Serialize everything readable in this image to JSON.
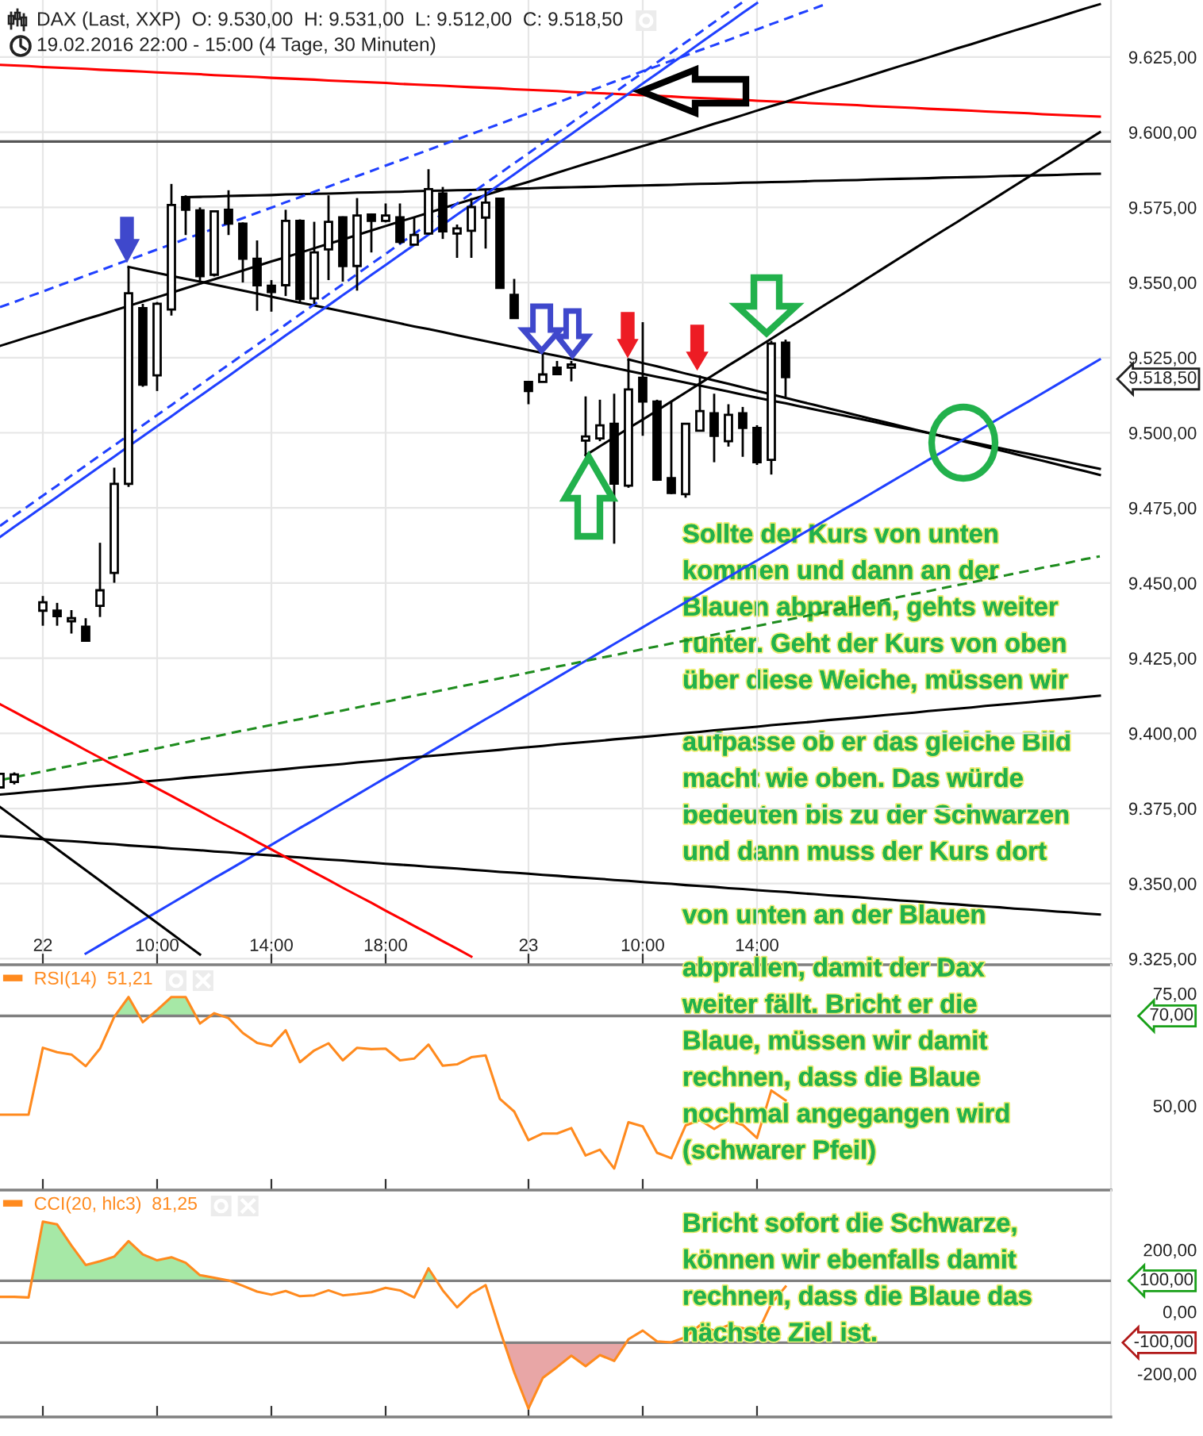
{
  "chart_data": [
    {
      "type": "candlestick",
      "title": "DAX (Last, XXP)  O: 9.530,00  H: 9.531,00  L: 9.512,00  C: 9.518,50",
      "subtitle": "19.02.2016 22:00 - 15:00 (4 Tage, 30 Minuten)",
      "categories": [
        null,
        null,
        null,
        "22",
        null,
        null,
        null,
        null,
        null,
        null,
        null,
        "10:00",
        null,
        null,
        null,
        null,
        null,
        null,
        null,
        "14:00",
        null,
        null,
        null,
        null,
        null,
        null,
        null,
        "18:00",
        null,
        null,
        null,
        null,
        null,
        null,
        null,
        null,
        null,
        "23",
        null,
        null,
        null,
        null,
        null,
        null,
        null,
        "10:00",
        null,
        null,
        null,
        null,
        null,
        null,
        null,
        "14:00",
        null,
        null,
        null,
        null,
        null,
        null,
        null,
        null,
        null,
        null,
        null,
        null,
        null,
        null,
        null,
        null,
        null,
        null,
        null,
        null,
        null,
        null,
        null,
        null
      ],
      "ohlc": [
        [
          9382.0,
          9386.5,
          9382.0,
          9386.5
        ],
        [
          9383.8,
          9387.0,
          9383.0,
          9386.3
        ],
        null,
        [
          9440.8,
          9445.7,
          9435.8,
          9443.6
        ],
        [
          9440.8,
          9443.4,
          9435.8,
          9439.0
        ],
        [
          9437.3,
          9441.0,
          9433.2,
          9438.3
        ],
        [
          9435.5,
          9438.3,
          9430.5,
          9430.8
        ],
        [
          9442.4,
          9463.4,
          9438.7,
          9447.6
        ],
        [
          9453.4,
          9488.4,
          9450.1,
          9483.0
        ],
        [
          9483.0,
          9555.2,
          9482.0,
          9546.4
        ],
        [
          9541.5,
          9542.9,
          9515.3,
          9516.0
        ],
        [
          9519.1,
          9543.5,
          9513.9,
          9542.9
        ],
        [
          9541.0,
          9582.8,
          9539.0,
          9575.8
        ],
        [
          9578.4,
          9579.0,
          9565.8,
          9574.2
        ],
        [
          9574.0,
          9575.0,
          9550.0,
          9552.1
        ],
        [
          9552.6,
          9574.0,
          9552.0,
          9573.7
        ],
        [
          9574.2,
          9580.7,
          9565.8,
          9569.6
        ],
        [
          9569.6,
          9570.0,
          9550.0,
          9557.9
        ],
        [
          9557.9,
          9564.0,
          9540.6,
          9549.1
        ],
        [
          9548.9,
          9550.8,
          9540.3,
          9546.8
        ],
        [
          9549.1,
          9574.2,
          9545.5,
          9570.5
        ],
        [
          9570.5,
          9571.0,
          9542.9,
          9544.5
        ],
        [
          9544.7,
          9570.2,
          9542.9,
          9560.0
        ],
        [
          9561.0,
          9579.0,
          9550.8,
          9570.2
        ],
        [
          9571.7,
          9572.0,
          9550.3,
          9555.5
        ],
        [
          9555.5,
          9578.1,
          9547.3,
          9572.3
        ],
        [
          9572.6,
          9573.0,
          9560.0,
          9570.5
        ],
        [
          9570.5,
          9576.3,
          9570.0,
          9572.3
        ],
        [
          9571.7,
          9576.3,
          9562.8,
          9563.5
        ],
        [
          9562.6,
          9571.9,
          9562.5,
          9565.8
        ],
        [
          9566.3,
          9587.7,
          9566.0,
          9581.1
        ],
        [
          9579.6,
          9581.8,
          9564.5,
          9567.0
        ],
        [
          9566.3,
          9569.3,
          9558.2,
          9568.0
        ],
        [
          9567.2,
          9578.1,
          9558.2,
          9575.1
        ],
        [
          9571.6,
          9581.2,
          9561.3,
          9576.6
        ],
        [
          9577.9,
          9578.0,
          9548.0,
          9548.2
        ],
        [
          9545.9,
          9551.2,
          9538.0,
          9538.2
        ],
        [
          9516.9,
          9517.0,
          9509.5,
          9513.9
        ],
        [
          9516.9,
          9527.1,
          9516.8,
          9519.4
        ],
        [
          9521.7,
          9523.9,
          9519.5,
          9519.5
        ],
        [
          9521.7,
          9523.9,
          9517.1,
          9522.7
        ],
        [
          9497.4,
          9512.1,
          9492.5,
          9498.8
        ],
        [
          9498.1,
          9511.0,
          9497.2,
          9502.5
        ],
        [
          9503.0,
          9513.0,
          9463.1,
          9483.1
        ],
        [
          9482.4,
          9524.4,
          9481.7,
          9514.4
        ],
        [
          9518.3,
          9536.8,
          9499.0,
          9510.4
        ],
        [
          9510.4,
          9511.0,
          9484.0,
          9484.4
        ],
        [
          9484.9,
          9510.4,
          9479.6,
          9480.0
        ],
        [
          9479.6,
          9503.0,
          9478.4,
          9503.0
        ],
        [
          9500.7,
          9519.1,
          9500.5,
          9507.2
        ],
        [
          9506.5,
          9513.0,
          9490.2,
          9499.0
        ],
        [
          9497.2,
          9509.5,
          9495.4,
          9506.0
        ],
        [
          9506.5,
          9508.6,
          9492.0,
          9501.6
        ],
        [
          9501.6,
          9502.5,
          9489.3,
          9490.2
        ],
        [
          9491.0,
          9530.6,
          9486.1,
          9529.7
        ],
        [
          9530.0,
          9531.0,
          9512.0,
          9518.5
        ],
        null,
        null,
        null,
        null,
        null,
        null,
        null,
        null,
        null,
        null,
        null,
        null,
        null,
        null,
        null,
        null,
        null,
        null,
        null,
        null,
        null,
        null
      ],
      "series": [
        {
          "type": "line",
          "color": "#ff0000",
          "values": [
            9622.4,
            9622.2,
            9622.0,
            9621.7,
            9621.5,
            9621.3,
            9621.1,
            9620.8,
            9620.6,
            9620.4,
            9620.2,
            9619.9,
            9619.7,
            9619.5,
            9619.3,
            9619.0,
            9618.8,
            9618.6,
            9618.4,
            9618.1,
            9617.9,
            9617.7,
            9617.5,
            9617.2,
            9617.0,
            9616.8,
            9616.6,
            9616.4,
            9616.1,
            9615.9,
            9615.7,
            9615.5,
            9615.2,
            9615.0,
            9614.8,
            9614.6,
            9614.3,
            9614.1,
            9613.9,
            9613.7,
            9613.4,
            9613.2,
            9613.0,
            9612.8,
            9612.5,
            9612.3,
            9612.1,
            9611.9,
            9611.6,
            9611.4,
            9611.2,
            9611.0,
            9610.8,
            9610.5,
            9610.3,
            9610.1,
            9609.9,
            9609.6,
            9609.4,
            9609.2,
            9609.0,
            9608.7,
            9608.5,
            9608.3,
            9608.1,
            9607.8,
            9607.6,
            9607.4,
            9607.2,
            9606.9,
            9606.7,
            9606.5,
            9606.3,
            9606.0,
            9605.8,
            9605.6,
            9605.4,
            9605.2
          ]
        },
        {
          "type": "line",
          "color": "#000000",
          "values": [
            null,
            null,
            null,
            null,
            null,
            null,
            null,
            null,
            null,
            null,
            null,
            null,
            null,
            9578.4,
            9578.5,
            9578.6,
            9578.8,
            9578.9,
            9579.0,
            9579.1,
            9579.3,
            9579.4,
            9579.5,
            9579.6,
            9579.7,
            9579.9,
            9580.0,
            9580.1,
            9580.2,
            9580.4,
            9580.5,
            9580.6,
            9580.7,
            9580.8,
            9581.0,
            9581.1,
            9581.2,
            9581.3,
            9581.5,
            9581.6,
            9581.7,
            9581.8,
            9581.9,
            9582.1,
            9582.2,
            9582.3,
            9582.4,
            9582.5,
            9582.7,
            9582.8,
            9582.9,
            9583.0,
            9583.2,
            9583.3,
            9583.4,
            9583.5,
            9583.6,
            9583.8,
            9583.9,
            9584.0,
            9584.1,
            9584.3,
            9584.4,
            9584.5,
            9584.6,
            9584.7,
            9584.9,
            9585.0,
            9585.1,
            9585.2,
            9585.4,
            9585.5,
            9585.6,
            9585.7,
            9585.8,
            9586.0,
            9586.1,
            9586.2
          ]
        },
        {
          "type": "line",
          "color": "#000000",
          "values": [
            9528.9,
            9530.4,
            9531.9,
            9533.3,
            9534.8,
            9536.3,
            9537.8,
            9539.2,
            9540.7,
            9542.2,
            9543.7,
            9545.1,
            9546.6,
            9548.1,
            9549.6,
            9551.1,
            9552.5,
            9554.0,
            9555.5,
            9557.0,
            9558.4,
            9559.9,
            9561.4,
            9562.9,
            9564.3,
            9565.8,
            9567.3,
            9568.8,
            9570.3,
            9571.7,
            9573.2,
            9574.7,
            9576.2,
            9577.6,
            9579.1,
            9580.6,
            9582.1,
            9583.5,
            9585.0,
            9586.5,
            9588.0,
            9589.5,
            9590.9,
            9592.4,
            9593.9,
            9595.4,
            9596.8,
            9598.3,
            9599.8,
            9601.3,
            9602.8,
            9604.2,
            9605.7,
            9607.2,
            9608.7,
            9610.1,
            9611.6,
            9613.1,
            9614.6,
            9616.0,
            9617.5,
            9619.0,
            9620.5,
            9622.0,
            9623.4,
            9624.9,
            9626.4,
            9627.9,
            9629.3,
            9630.8,
            9632.3,
            9633.8,
            9635.2,
            9636.7,
            9638.2,
            9639.7,
            9641.2,
            9642.6
          ]
        },
        {
          "type": "line",
          "color": "#000000",
          "values": [
            null,
            null,
            null,
            null,
            null,
            null,
            null,
            null,
            null,
            9555.2,
            9554.2,
            9553.2,
            9552.2,
            9551.2,
            9550.3,
            9549.3,
            9548.3,
            9547.3,
            9546.3,
            9545.3,
            9544.3,
            9543.3,
            9542.4,
            9541.4,
            9540.4,
            9539.4,
            9538.4,
            9537.4,
            9536.4,
            9535.4,
            9534.5,
            9533.5,
            9532.5,
            9531.5,
            9530.5,
            9529.5,
            9528.5,
            9527.5,
            9526.5,
            9525.6,
            9524.6,
            9523.6,
            9522.6,
            9521.6,
            9520.6,
            9519.6,
            9518.6,
            9517.7,
            9516.7,
            9515.7,
            9514.7,
            9513.7,
            9512.7,
            9511.7,
            9510.7,
            9509.8,
            9508.8,
            9507.8,
            9506.8,
            9505.8,
            9504.8,
            9503.8,
            9502.8,
            9501.8,
            9500.9,
            9499.9,
            9498.9,
            9497.9,
            9496.9,
            9495.9,
            9494.9,
            9493.9,
            9493.0,
            9492.0,
            9491.0,
            9490.0,
            9489.0,
            9488.0
          ]
        },
        {
          "type": "line",
          "color": "#000000",
          "values": [
            null,
            null,
            null,
            null,
            null,
            null,
            null,
            null,
            null,
            null,
            null,
            null,
            null,
            null,
            null,
            null,
            null,
            null,
            null,
            null,
            null,
            null,
            null,
            null,
            null,
            null,
            null,
            null,
            null,
            null,
            null,
            null,
            null,
            null,
            null,
            null,
            null,
            null,
            null,
            null,
            null,
            null,
            null,
            null,
            9524.4,
            9523.2,
            9522.1,
            9520.9,
            9519.7,
            9518.6,
            9517.4,
            9516.3,
            9515.1,
            9513.9,
            9512.8,
            9511.6,
            9510.4,
            9509.3,
            9508.1,
            9507.0,
            9505.8,
            9504.6,
            9503.5,
            9502.3,
            9501.1,
            9500.0,
            9498.8,
            9497.7,
            9496.5,
            9495.3,
            9494.2,
            9493.0,
            9491.8,
            9490.7,
            9489.5,
            9488.3,
            9487.2,
            9486.0
          ]
        },
        {
          "type": "line",
          "color": "#000000",
          "values": [
            null,
            null,
            null,
            null,
            null,
            null,
            null,
            null,
            null,
            null,
            null,
            null,
            null,
            null,
            null,
            null,
            null,
            null,
            null,
            null,
            null,
            null,
            null,
            null,
            null,
            null,
            null,
            null,
            null,
            null,
            null,
            null,
            null,
            null,
            null,
            null,
            null,
            null,
            null,
            null,
            null,
            9492.5,
            9495.5,
            9498.5,
            9501.5,
            9504.4,
            9507.4,
            9510.4,
            9513.4,
            9516.4,
            9519.4,
            9522.4,
            9525.3,
            9528.3,
            9531.3,
            9534.3,
            9537.3,
            9540.3,
            9543.3,
            9546.2,
            9549.2,
            9552.2,
            9555.2,
            9558.2,
            9561.2,
            9564.2,
            9567.2,
            9570.1,
            9573.1,
            9576.1,
            9579.1,
            9582.1,
            9585.1,
            9588.1,
            9591.0,
            9594.0,
            9597.0,
            9600.0
          ]
        },
        {
          "type": "line",
          "color": "#2040ff",
          "values": [
            9465.3,
            9468.7,
            9472.0,
            9475.4,
            9478.7,
            9482.1,
            9485.4,
            9488.8,
            9492.1,
            9495.5,
            9498.8,
            9502.2,
            9505.5,
            9508.9,
            9512.2,
            9515.6,
            9518.9,
            9522.3,
            9525.7,
            9529.0,
            9532.4,
            9535.7,
            9539.1,
            9542.4,
            9545.8,
            9549.1,
            9552.5,
            9555.8,
            9559.2,
            9562.5,
            9565.9,
            9569.2,
            9572.6,
            9575.9,
            9579.3,
            9582.7,
            9586.0,
            9589.4,
            9592.7,
            9596.1,
            9599.4,
            9602.8,
            9606.1,
            9609.5,
            9612.8,
            9616.2,
            9619.5,
            9622.9,
            9626.2,
            9629.6,
            9633.0,
            9636.3,
            9639.7,
            9643.0,
            null,
            null,
            null,
            null,
            null,
            null,
            null,
            null,
            null,
            null,
            null,
            null,
            null,
            null,
            null,
            null,
            null,
            null,
            null,
            null,
            null,
            null,
            null,
            null
          ]
        },
        {
          "type": "line",
          "color": "#2040ff",
          "values": [
            null,
            null,
            null,
            null,
            null,
            null,
            9326.7,
            9329.5,
            9332.3,
            9335.1,
            9337.8,
            9340.6,
            9343.4,
            9346.2,
            9349.0,
            9351.8,
            9354.5,
            9357.3,
            9360.1,
            9362.9,
            9365.7,
            9368.5,
            9371.2,
            9374.0,
            9376.8,
            9379.6,
            9382.4,
            9385.2,
            9387.9,
            9390.7,
            9393.5,
            9396.3,
            9399.1,
            9401.9,
            9404.7,
            9407.4,
            9410.2,
            9413.0,
            9415.8,
            9418.6,
            9421.4,
            9424.1,
            9426.9,
            9429.7,
            9432.5,
            9435.3,
            9438.1,
            9440.8,
            9443.6,
            9446.4,
            9449.2,
            9452.0,
            9454.8,
            9457.5,
            9460.3,
            9463.1,
            9465.9,
            9468.7,
            9471.5,
            9474.3,
            9477.0,
            9479.8,
            9482.6,
            9485.4,
            9488.2,
            9491.0,
            9493.7,
            9496.5,
            9499.3,
            9502.1,
            9504.9,
            9507.7,
            9510.4,
            9513.2,
            9516.0,
            9518.8,
            9521.6,
            9524.4
          ]
        },
        {
          "type": "line",
          "color": "#2040ff",
          "line_style": "dashed",
          "values": [
            9541.8,
            9543.5,
            9545.3,
            9547.0,
            9548.8,
            9550.5,
            9552.3,
            9554.0,
            9555.8,
            9557.5,
            9559.2,
            9561.0,
            9562.7,
            9564.5,
            9566.2,
            9568.0,
            9569.7,
            9571.4,
            9573.2,
            9574.9,
            9576.7,
            9578.4,
            9580.2,
            9581.9,
            9583.7,
            9585.4,
            9587.1,
            9588.9,
            9590.6,
            9592.4,
            9594.1,
            9595.9,
            9597.6,
            9599.4,
            9601.1,
            9602.8,
            9604.6,
            9606.3,
            9608.1,
            9609.8,
            9611.6,
            9613.3,
            9615.0,
            9616.8,
            9618.5,
            9620.3,
            9622.0,
            9623.8,
            9625.5,
            9627.3,
            9629.0,
            9630.7,
            9632.5,
            9634.2,
            9636.0,
            9637.7,
            9639.5,
            9641.2,
            9643.0,
            null,
            null,
            null,
            null,
            null,
            null,
            null,
            null,
            null,
            null,
            null,
            null,
            null,
            null,
            null,
            null,
            null,
            null,
            null
          ]
        },
        {
          "type": "line",
          "color": "#2040ff",
          "line_style": "dashed",
          "values": [
            9469.0,
            9472.4,
            9475.7,
            9479.1,
            9482.4,
            9485.8,
            9489.1,
            9492.5,
            9495.8,
            9499.2,
            9502.5,
            9505.9,
            9509.2,
            9512.6,
            9515.9,
            9519.3,
            9522.6,
            9526.0,
            9529.3,
            9532.7,
            9536.0,
            9539.4,
            9542.7,
            9546.1,
            9549.4,
            9552.8,
            9556.2,
            9559.5,
            9562.9,
            9566.2,
            9569.6,
            9572.9,
            9576.3,
            9579.6,
            9583.0,
            9586.3,
            9589.7,
            9593.0,
            9596.4,
            9599.7,
            9603.1,
            9606.4,
            9609.8,
            9613.1,
            9616.5,
            9619.8,
            9623.2,
            9626.5,
            9629.9,
            9633.2,
            9636.6,
            9640.0,
            9643.3,
            null,
            null,
            null,
            null,
            null,
            null,
            null,
            null,
            null,
            null,
            null,
            null,
            null,
            null,
            null,
            null,
            null,
            null,
            null,
            null,
            null,
            null,
            null,
            null,
            null
          ]
        },
        {
          "type": "line",
          "color": "#1e8c1e",
          "line_style": "dashed",
          "values": [
            9384.4,
            9385.4,
            9386.3,
            9387.3,
            9388.3,
            9389.2,
            9390.2,
            9391.2,
            9392.1,
            9393.1,
            9394.1,
            9395.0,
            9396.0,
            9397.0,
            9398.0,
            9398.9,
            9399.9,
            9400.9,
            9401.8,
            9402.8,
            9403.8,
            9404.7,
            9405.7,
            9406.7,
            9407.6,
            9408.6,
            9409.6,
            9410.5,
            9411.5,
            9412.5,
            9413.4,
            9414.4,
            9415.4,
            9416.3,
            9417.3,
            9418.3,
            9419.2,
            9420.2,
            9421.2,
            9422.2,
            9423.1,
            9424.1,
            9425.1,
            9426.0,
            9427.0,
            9428.0,
            9428.9,
            9429.9,
            9430.9,
            9431.8,
            9432.8,
            9433.8,
            9434.7,
            9435.7,
            9436.7,
            9437.6,
            9438.6,
            9439.6,
            9440.5,
            9441.5,
            9442.5,
            9443.4,
            9444.4,
            9445.4,
            9446.4,
            9447.3,
            9448.3,
            9449.3,
            9450.2,
            9451.2,
            9452.2,
            9453.1,
            9454.1,
            9455.1,
            9456.0,
            9457.0,
            9458.0,
            9458.9
          ]
        },
        {
          "type": "line",
          "color": "#000000",
          "values": [
            9379.6,
            9380.0,
            9380.5,
            9380.9,
            9381.3,
            9381.7,
            9382.2,
            9382.6,
            9383.0,
            9383.4,
            9383.9,
            9384.3,
            9384.7,
            9385.2,
            9385.6,
            9386.0,
            9386.4,
            9386.9,
            9387.3,
            9387.7,
            9388.1,
            9388.6,
            9389.0,
            9389.4,
            9389.8,
            9390.3,
            9390.7,
            9391.1,
            9391.6,
            9392.0,
            9392.4,
            9392.8,
            9393.3,
            9393.7,
            9394.1,
            9394.5,
            9395.0,
            9395.4,
            9395.8,
            9396.3,
            9396.7,
            9397.1,
            9397.5,
            9398.0,
            9398.4,
            9398.8,
            9399.2,
            9399.7,
            9400.1,
            9400.5,
            9401.0,
            9401.4,
            9401.8,
            9402.2,
            9402.7,
            9403.1,
            9403.5,
            9403.9,
            9404.4,
            9404.8,
            9405.2,
            9405.6,
            9406.1,
            9406.5,
            9406.9,
            9407.4,
            9407.8,
            9408.2,
            9408.6,
            9409.1,
            9409.5,
            9409.9,
            9410.3,
            9410.8,
            9411.2,
            9411.6,
            9412.1,
            9412.5
          ]
        },
        {
          "type": "line",
          "color": "#000000",
          "values": [
            9365.8,
            9365.5,
            9365.1,
            9364.8,
            9364.4,
            9364.1,
            9363.8,
            9363.4,
            9363.1,
            9362.7,
            9362.4,
            9362.1,
            9361.7,
            9361.4,
            9361.1,
            9360.7,
            9360.4,
            9360.0,
            9359.7,
            9359.4,
            9359.0,
            9358.7,
            9358.3,
            9358.0,
            9357.7,
            9357.3,
            9357.0,
            9356.6,
            9356.3,
            9356.0,
            9355.6,
            9355.3,
            9355.0,
            9354.6,
            9354.3,
            9353.9,
            9353.6,
            9353.3,
            9352.9,
            9352.6,
            9352.2,
            9351.9,
            9351.6,
            9351.2,
            9350.9,
            9350.5,
            9350.2,
            9349.9,
            9349.5,
            9349.2,
            9348.9,
            9348.5,
            9348.2,
            9347.8,
            9347.5,
            9347.2,
            9346.8,
            9346.5,
            9346.1,
            9345.8,
            9345.5,
            9345.1,
            9344.8,
            9344.4,
            9344.1,
            9343.8,
            9343.4,
            9343.1,
            9342.7,
            9342.4,
            9342.1,
            9341.7,
            9341.4,
            9341.1,
            9340.7,
            9340.4,
            9340.0,
            9339.7
          ]
        },
        {
          "type": "line",
          "color": "#000000",
          "values": [
            9375.5,
            9372.0,
            9368.5,
            9365.0,
            9361.5,
            9358.0,
            9354.5,
            9351.0,
            9347.4,
            9343.9,
            9340.4,
            9336.9,
            9333.4,
            9329.9,
            9326.4,
            null,
            null,
            null,
            null,
            null,
            null,
            null,
            null,
            null,
            null,
            null,
            null,
            null,
            null,
            null,
            null,
            null,
            null,
            null,
            null,
            null,
            null,
            null,
            null,
            null,
            null,
            null,
            null,
            null,
            null,
            null,
            null,
            null,
            null,
            null,
            null,
            null,
            null,
            null,
            null,
            null,
            null,
            null,
            null,
            null,
            null,
            null,
            null,
            null,
            null,
            null,
            null,
            null,
            null,
            null,
            null,
            null,
            null,
            null,
            null,
            null,
            null,
            null
          ]
        },
        {
          "type": "line",
          "color": "#ff0000",
          "values": [
            9409.7,
            9407.2,
            9404.6,
            9402.1,
            9399.5,
            9397.0,
            9394.4,
            9391.9,
            9389.3,
            9386.8,
            9384.3,
            9381.7,
            9379.2,
            9376.6,
            9374.1,
            9371.5,
            9369.0,
            9366.5,
            9363.9,
            9361.4,
            9358.8,
            9356.3,
            9353.7,
            9351.2,
            9348.6,
            9346.1,
            9343.6,
            9341.0,
            9338.5,
            9335.9,
            9333.4,
            9330.8,
            9328.3,
            9325.7,
            null,
            null,
            null,
            null,
            null,
            null,
            null,
            null,
            null,
            null,
            null,
            null,
            null,
            null,
            null,
            null,
            null,
            null,
            null,
            null,
            null,
            null,
            null,
            null,
            null,
            null,
            null,
            null,
            null,
            null,
            null,
            null,
            null,
            null,
            null,
            null,
            null,
            null,
            null,
            null,
            null,
            null,
            null,
            null
          ]
        }
      ],
      "ref_lines": [
        {
          "axis": "y",
          "value": 9596.9,
          "color": "#555555"
        }
      ],
      "ylim": [
        9323,
        9644
      ],
      "yticks": [
        {
          "value": 9325,
          "label": "9.325,00"
        },
        {
          "value": 9350,
          "label": "9.350,00"
        },
        {
          "value": 9375,
          "label": "9.375,00"
        },
        {
          "value": 9400,
          "label": "9.400,00"
        },
        {
          "value": 9425,
          "label": "9.425,00"
        },
        {
          "value": 9450,
          "label": "9.450,00"
        },
        {
          "value": 9475,
          "label": "9.475,00"
        },
        {
          "value": 9500,
          "label": "9.500,00"
        },
        {
          "value": 9518.5,
          "label": "9.518,50"
        },
        {
          "value": 9525,
          "label": "9.525,00"
        },
        {
          "value": 9550,
          "label": "9.550,00"
        },
        {
          "value": 9575,
          "label": "9.575,00"
        },
        {
          "value": 9600,
          "label": "9.600,00"
        },
        {
          "value": 9625,
          "label": "9.625,00"
        }
      ],
      "grid": true,
      "annotations": [
        "Sollte der Kurs von unten\nkommen und dann an der\nBlauen abprallen, gehts weiter\nrunter. Geht der Kurs von oben\nüber diese Weiche, müssen wir\naufpasse ob er das gleiche Bild\nmacht wie oben. Das würde\nbedeuten bis zu der Schwarzen\nund dann muss der Kurs dort\nvon unten an der Blauen",
        "abprallen, damit der Dax\nweiter fällt. Bricht er die\nBlaue, müssen wir damit\nrechnen, dass die Blaue\nnochmal angegangen wird\n(schwarer Pfeil)\n\nBricht sofort die Schwarze,\nkönnen wir ebenfalls damit\nrechnen, dass die Blaue das\nnächste Ziel ist."
      ]
    },
    {
      "type": "line",
      "categories": [
        null,
        null,
        null,
        null,
        null,
        null,
        null,
        null,
        null,
        null,
        null,
        null,
        null,
        null,
        null,
        null,
        null,
        null,
        null,
        null,
        null,
        null,
        null,
        null,
        null,
        null,
        null,
        null,
        null,
        null,
        null,
        null,
        null,
        null,
        null,
        null,
        null,
        null,
        null,
        null,
        null,
        null,
        null,
        null,
        null,
        null,
        null,
        null,
        null,
        null,
        null,
        null,
        null,
        null,
        null,
        null,
        null,
        null,
        null,
        null,
        null,
        null,
        null,
        null,
        null,
        null,
        null,
        null,
        null,
        null,
        null,
        null,
        null,
        null,
        null,
        null,
        null,
        null
      ],
      "series": [
        {
          "name": "RSI(14)  51,21",
          "color": "#ff8a1e",
          "values": [
            48.0,
            48.0,
            48.0,
            62.9,
            61.9,
            61.4,
            58.8,
            62.7,
            69.8,
            74.2,
            68.6,
            71.3,
            74.2,
            74.2,
            68.3,
            70.6,
            69.5,
            66.2,
            64.0,
            63.3,
            66.8,
            59.7,
            62.3,
            63.9,
            60.1,
            62.9,
            62.6,
            62.7,
            60.1,
            60.5,
            63.6,
            58.9,
            59.2,
            60.8,
            61.2,
            51.5,
            48.7,
            42.3,
            43.8,
            43.8,
            45.0,
            38.9,
            40.2,
            36.0,
            46.3,
            45.4,
            39.5,
            38.3,
            45.6,
            46.8,
            44.8,
            46.8,
            45.7,
            42.8,
            53.4,
            51.21,
            null,
            null,
            null,
            null,
            null,
            null,
            null,
            null,
            null,
            null,
            null,
            null,
            null,
            null,
            null,
            null,
            null,
            null,
            null,
            null,
            null,
            null
          ]
        }
      ],
      "ylim": [
        31.2,
        81.4
      ],
      "yticks": [
        {
          "value": 50,
          "label": "50,00"
        },
        {
          "value": 75,
          "label": "75,00"
        }
      ],
      "ref_lines": [
        {
          "axis": "y",
          "value": 70,
          "label": "70,00",
          "color": "#808080"
        }
      ],
      "tick_labels": "y",
      "legend": "top left"
    },
    {
      "type": "line",
      "categories": [
        null,
        null,
        null,
        null,
        null,
        null,
        null,
        null,
        null,
        null,
        null,
        null,
        null,
        null,
        null,
        null,
        null,
        null,
        null,
        null,
        null,
        null,
        null,
        null,
        null,
        null,
        null,
        null,
        null,
        null,
        null,
        null,
        null,
        null,
        null,
        null,
        null,
        null,
        null,
        null,
        null,
        null,
        null,
        null,
        null,
        null,
        null,
        null,
        null,
        null,
        null,
        null,
        null,
        null,
        null,
        null,
        null,
        null,
        null,
        null,
        null,
        null,
        null,
        null,
        null,
        null,
        null,
        null,
        null,
        null,
        null,
        null,
        null,
        null,
        null,
        null,
        null,
        null
      ],
      "series": [
        {
          "name": "CCI(20, hlc3)  81,25",
          "color": "#ff8a1e",
          "values": [
            48,
            48,
            46,
            291,
            282,
            214,
            151,
            163,
            178,
            228,
            185,
            166,
            176,
            158,
            118,
            110,
            101,
            84,
            65,
            55,
            67,
            50,
            53,
            69,
            53,
            57,
            63,
            77,
            69,
            46,
            140,
            69,
            14,
            58,
            86,
            -60,
            -196,
            -313,
            -214,
            -179,
            -142,
            -176,
            -140,
            -159,
            -89,
            -61,
            -96,
            -99,
            -82,
            -44,
            -61,
            -44,
            -53,
            -72,
            26,
            81.25,
            null,
            null,
            null,
            null,
            null,
            null,
            null,
            null,
            null,
            null,
            null,
            null,
            null,
            null,
            null,
            null,
            null,
            null,
            null,
            null,
            null,
            null
          ]
        }
      ],
      "ylim": [
        -340,
        393
      ],
      "yticks": [
        {
          "value": -200,
          "label": "-200,00"
        },
        {
          "value": 0,
          "label": "0,00"
        },
        {
          "value": 200,
          "label": "200,00"
        }
      ],
      "ref_lines": [
        {
          "axis": "y",
          "value": 100,
          "label": "100,00",
          "color": "#808080"
        },
        {
          "axis": "y",
          "value": -100,
          "label": "-100,00",
          "color": "#808080"
        }
      ],
      "tick_labels": "y",
      "legend": "top left"
    }
  ]
}
